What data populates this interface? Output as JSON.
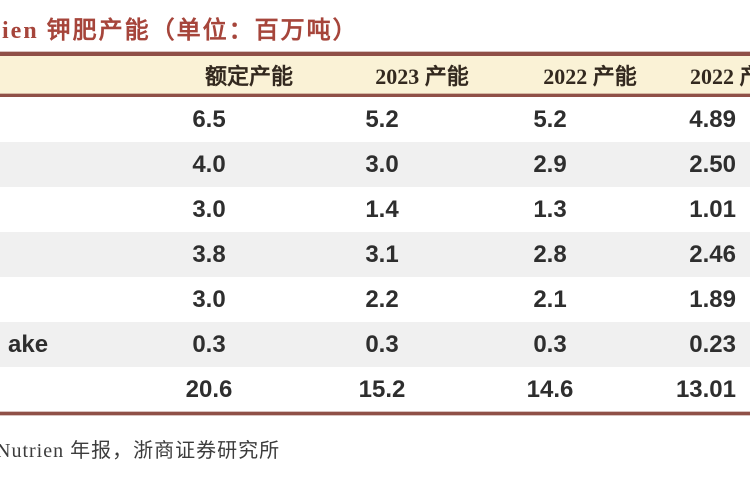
{
  "title": "ien 钾肥产能（单位：百万吨）",
  "table": {
    "headers": [
      "",
      "额定产能",
      "2023 产能",
      "2022 产能",
      "2022 产"
    ],
    "rows": [
      {
        "label": "",
        "values": [
          "6.5",
          "5.2",
          "5.2",
          "4.89"
        ]
      },
      {
        "label": "",
        "values": [
          "4.0",
          "3.0",
          "2.9",
          "2.50"
        ]
      },
      {
        "label": "",
        "values": [
          "3.0",
          "1.4",
          "1.3",
          "1.01"
        ]
      },
      {
        "label": "",
        "values": [
          "3.8",
          "3.1",
          "2.8",
          "2.46"
        ]
      },
      {
        "label": "",
        "values": [
          "3.0",
          "2.2",
          "2.1",
          "1.89"
        ]
      },
      {
        "label": "ake",
        "values": [
          "0.3",
          "0.3",
          "0.3",
          "0.23"
        ]
      },
      {
        "label": "",
        "values": [
          "20.6",
          "15.2",
          "14.6",
          "13.01"
        ]
      }
    ]
  },
  "source_note": "Nutrien 年报，浙商证券研究所",
  "colors": {
    "title_red": "#A6453B",
    "border_brown": "#8F5047",
    "header_bg": "#FAF2D6",
    "header_text": "#33291F",
    "body_text": "#2E2E2E",
    "stripe_gray": "#F0F0F0"
  }
}
